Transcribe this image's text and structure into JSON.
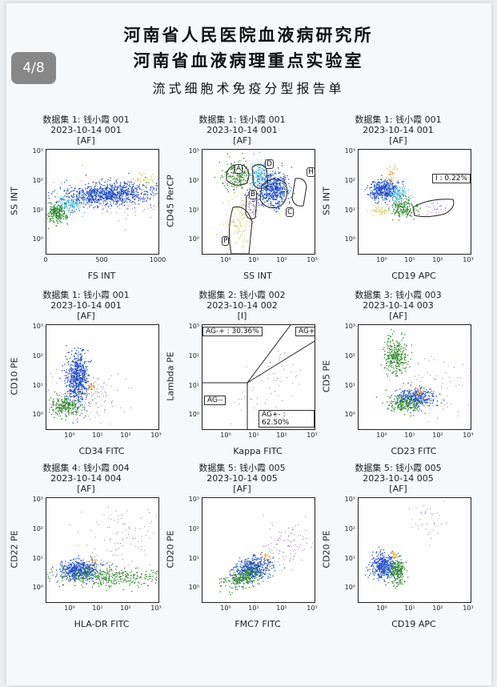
{
  "page_indicator": "4/8",
  "header": {
    "line1": "河南省人民医院血液病研究所",
    "line2": "河南省血液病理重点实验室",
    "line3": "流式细胞术免疫分型报告单"
  },
  "colors": {
    "blue": "#1f4fc9",
    "green": "#2f8a2a",
    "cyan": "#57c8e6",
    "orange": "#e9a23b",
    "yellow": "#d8d36b",
    "purple": "#5b2c8f"
  },
  "panels": [
    {
      "h1": "数据集 1: 钱小霞 001",
      "h2": "2023-10-14 001",
      "h3": "[AF]",
      "xlabel": "FS INT",
      "ylabel": "SS INT",
      "x_scale": "linear",
      "xticks": [
        "0",
        "500",
        "1000"
      ],
      "yticks": [
        "10³",
        "10²",
        "10¹",
        "10⁰"
      ],
      "gates": []
    },
    {
      "h1": "数据集 1: 钱小霞 001",
      "h2": "2023-10-14 001",
      "h3": "[AF]",
      "xlabel": "SS INT",
      "ylabel": "CD45 PerCP",
      "x_scale": "log",
      "xticks": [
        "10⁰",
        "10¹",
        "10²",
        "10³"
      ],
      "yticks": [
        "10³",
        "10²",
        "10¹",
        "10⁰"
      ],
      "gates": [
        "A",
        "D",
        "H",
        "B",
        "C",
        "P"
      ]
    },
    {
      "h1": "数据集 1: 钱小霞 001",
      "h2": "2023-10-14 001",
      "h3": "[AF]",
      "xlabel": "CD19 APC",
      "ylabel": "SS INT",
      "x_scale": "log",
      "xticks": [
        "10⁰",
        "10¹",
        "10²",
        "10³"
      ],
      "yticks": [
        "10³",
        "10²",
        "10¹",
        "10⁰"
      ],
      "gates": [
        "I : 0.22%"
      ]
    },
    {
      "h1": "数据集 1: 钱小霞 001",
      "h2": "2023-10-14 001",
      "h3": "[AF]",
      "xlabel": "CD34 FITC",
      "ylabel": "CD10 PE",
      "x_scale": "log",
      "xticks": [
        "10⁰",
        "10¹",
        "10²",
        "10³"
      ],
      "yticks": [
        "10³",
        "10²",
        "10¹",
        "10⁰"
      ],
      "gates": []
    },
    {
      "h1": "数据集 2: 钱小霞 002",
      "h2": "2023-10-14 002",
      "h3": "[I]",
      "xlabel": "Kappa FITC",
      "ylabel": "Lambda PE",
      "x_scale": "log",
      "xticks": [
        "10⁰",
        "10¹",
        "10²",
        "10³"
      ],
      "yticks": [
        "10³",
        "10²",
        "10¹",
        "10⁰"
      ],
      "gates": [
        "AG-+ : 30.36%",
        "AG++",
        "AG--",
        "AG+- : 62.50%"
      ]
    },
    {
      "h1": "数据集 3: 钱小霞 003",
      "h2": "2023-10-14 003",
      "h3": "[AF]",
      "xlabel": "CD23 FITC",
      "ylabel": "CD5 PE",
      "x_scale": "log",
      "xticks": [
        "10⁰",
        "10¹",
        "10²",
        "10³"
      ],
      "yticks": [
        "10³",
        "10²",
        "10¹",
        "10⁰"
      ],
      "gates": []
    },
    {
      "h1": "数据集 4: 钱小霞 004",
      "h2": "2023-10-14 004",
      "h3": "[AF]",
      "xlabel": "HLA-DR FITC",
      "ylabel": "CD22 PE",
      "x_scale": "log",
      "xticks": [
        "10⁰",
        "10¹",
        "10²",
        "10³"
      ],
      "yticks": [
        "10³",
        "10²",
        "10¹",
        "10⁰"
      ],
      "gates": []
    },
    {
      "h1": "数据集 5: 钱小霞 005",
      "h2": "2023-10-14 005",
      "h3": "[AF]",
      "xlabel": "FMC7 FITC",
      "ylabel": "CD20 PE",
      "x_scale": "log",
      "xticks": [
        "10⁰",
        "10¹",
        "10²",
        "10³"
      ],
      "yticks": [
        "10³",
        "10²",
        "10¹",
        "10⁰"
      ],
      "gates": []
    },
    {
      "h1": "数据集 5: 钱小霞 005",
      "h2": "2023-10-14 005",
      "h3": "[AF]",
      "xlabel": "CD19 APC",
      "ylabel": "CD20 PE",
      "x_scale": "log",
      "xticks": [
        "10⁰",
        "10¹",
        "10²",
        "10³"
      ],
      "yticks": [
        "10³",
        "10²",
        "10¹",
        "10⁰"
      ],
      "gates": []
    }
  ]
}
